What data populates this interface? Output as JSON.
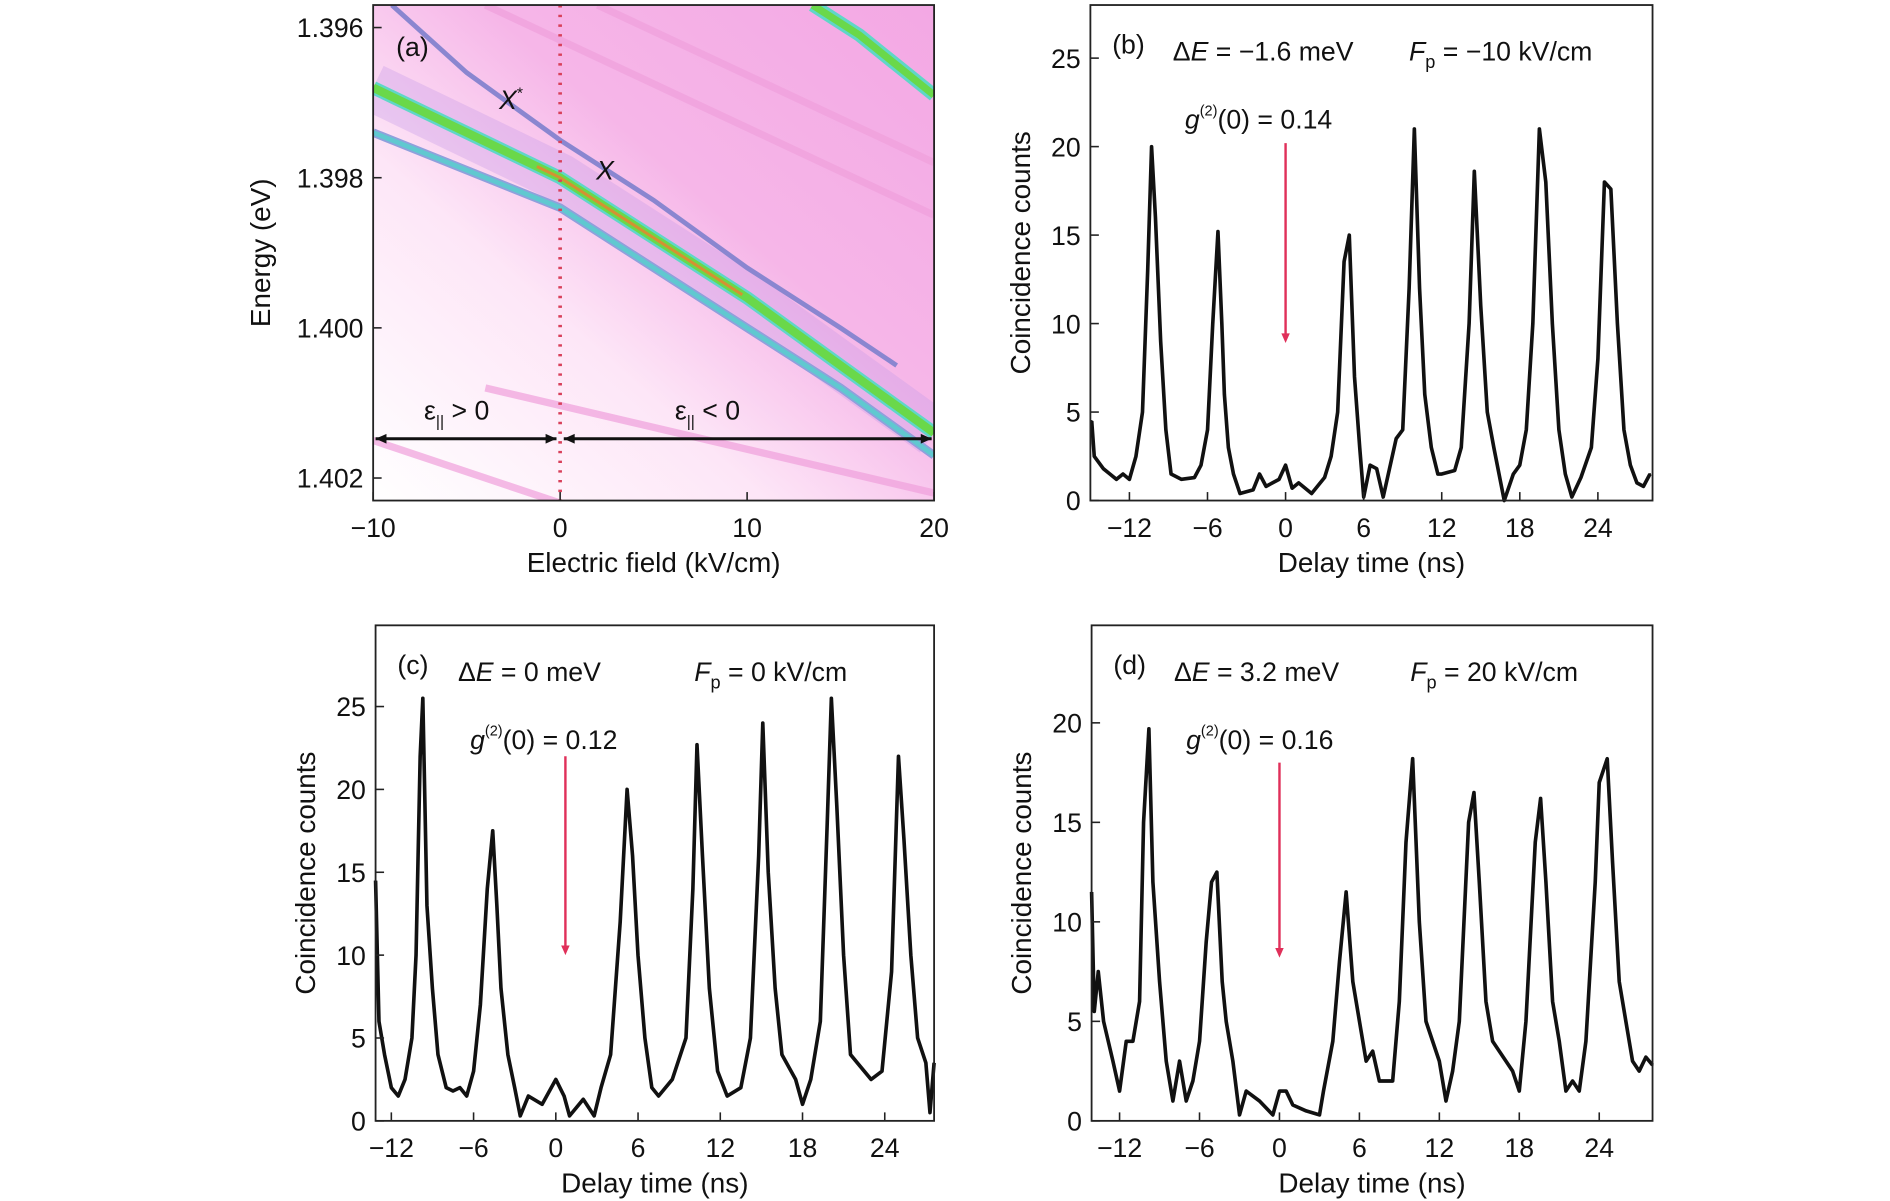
{
  "chart_data": [
    {
      "panel": "(a)",
      "type": "heatmap",
      "xlabel": "Electric field (kV/cm)",
      "ylabel": "Energy (eV)",
      "xlim": [
        -10,
        20
      ],
      "ylim": [
        1.4023,
        1.3957
      ],
      "y_inverted": true,
      "xticks": [
        -10,
        0,
        10,
        20
      ],
      "xtick_labels": [
        "−10",
        "0",
        "10",
        "20"
      ],
      "yticks": [
        1.396,
        1.398,
        1.4,
        1.402
      ],
      "ytick_labels": [
        "1.396",
        "1.398",
        "1.400",
        "1.402"
      ],
      "colormap": [
        "#ffffff",
        "#f4b8e6",
        "#9a8fd8",
        "#5fd6c8",
        "#7ee04a",
        "#d8e030",
        "#e07030"
      ],
      "lines": [
        {
          "label": "X",
          "points": [
            [
              -10,
              1.3968
            ],
            [
              -5,
              1.3974
            ],
            [
              0,
              1.398
            ],
            [
              5,
              1.3988
            ],
            [
              10,
              1.3996
            ],
            [
              15,
              1.4005
            ],
            [
              20,
              1.4014
            ]
          ],
          "color": "#6ad84a"
        },
        {
          "points": [
            [
              -10,
              1.3974
            ],
            [
              -5,
              1.3979
            ],
            [
              0,
              1.3984
            ],
            [
              5,
              1.3992
            ],
            [
              10,
              1.4
            ],
            [
              15,
              1.4008
            ],
            [
              20,
              1.4017
            ]
          ],
          "color": "#60c8d0"
        },
        {
          "label": "X*",
          "points": [
            [
              -9,
              1.3957
            ],
            [
              -5,
              1.3966
            ],
            [
              0,
              1.3975
            ],
            [
              5,
              1.3983
            ],
            [
              10,
              1.3992
            ],
            [
              15,
              1.4
            ],
            [
              18,
              1.4005
            ]
          ],
          "color": "#8a86d0"
        },
        {
          "points": [
            [
              13.5,
              1.3957
            ],
            [
              16,
              1.3961
            ],
            [
              18,
              1.3965
            ],
            [
              20,
              1.3969
            ]
          ],
          "color": "#6ad84a"
        }
      ],
      "marker_line_x": 0,
      "annotations": {
        "panel_label": "(a)",
        "x_star": "X",
        "x_star_sup": "*",
        "x": "X",
        "strain_pos": "ε",
        "strain_pos_sub": "||",
        "strain_pos_rel": " > 0",
        "strain_neg": "ε",
        "strain_neg_sub": "||",
        "strain_neg_rel": " < 0"
      }
    },
    {
      "panel": "(b)",
      "type": "line",
      "xlabel": "Delay time (ns)",
      "ylabel": "Coincidence counts",
      "xlim": [
        -15,
        28.2
      ],
      "ylim": [
        0,
        28
      ],
      "xticks": [
        -12,
        -6,
        0,
        6,
        12,
        18,
        24
      ],
      "xtick_labels": [
        "−12",
        "−6",
        "0",
        "6",
        "12",
        "18",
        "24"
      ],
      "yticks": [
        0,
        5,
        10,
        15,
        20,
        25
      ],
      "ytick_labels": [
        "0",
        "5",
        "10",
        "15",
        "20",
        "25"
      ],
      "annotations": {
        "panel_label": "(b)",
        "delta_e": "ΔE = −1.6 meV",
        "delta_e_sym": "Δ",
        "delta_e_var": "E",
        "delta_e_val": " = −1.6 meV",
        "fp_var": "F",
        "fp_sub": "p",
        "fp_val": " = −10 kV/cm",
        "g2_var": "g",
        "g2_sup": "(2)",
        "g2_val": "(0) = 0.14"
      },
      "arrow": {
        "x": 0,
        "from": 20.2,
        "to": 8.9,
        "color": "#e0305a"
      },
      "points": [
        [
          -14.9,
          4.5
        ],
        [
          -14.7,
          2.5
        ],
        [
          -14,
          1.8
        ],
        [
          -13.5,
          1.5
        ],
        [
          -13,
          1.2
        ],
        [
          -12.5,
          1.5
        ],
        [
          -12,
          1.2
        ],
        [
          -11.5,
          2.5
        ],
        [
          -11,
          5
        ],
        [
          -10.6,
          13
        ],
        [
          -10.3,
          20
        ],
        [
          -10,
          16
        ],
        [
          -9.6,
          9
        ],
        [
          -9.2,
          4
        ],
        [
          -8.8,
          1.5
        ],
        [
          -8,
          1.2
        ],
        [
          -7,
          1.3
        ],
        [
          -6.5,
          2
        ],
        [
          -6,
          4
        ],
        [
          -5.6,
          10
        ],
        [
          -5.2,
          15.2
        ],
        [
          -4.9,
          10
        ],
        [
          -4.7,
          6
        ],
        [
          -4.4,
          3
        ],
        [
          -4,
          1.5
        ],
        [
          -3.5,
          0.4
        ],
        [
          -2.5,
          0.6
        ],
        [
          -2,
          1.5
        ],
        [
          -1.5,
          0.8
        ],
        [
          -0.5,
          1.2
        ],
        [
          0,
          2
        ],
        [
          0.5,
          0.7
        ],
        [
          1,
          1
        ],
        [
          2,
          0.4
        ],
        [
          3,
          1.3
        ],
        [
          3.5,
          2.5
        ],
        [
          4,
          5
        ],
        [
          4.5,
          13.5
        ],
        [
          4.9,
          15
        ],
        [
          5.3,
          7
        ],
        [
          5.7,
          3
        ],
        [
          6,
          0.2
        ],
        [
          6.5,
          2
        ],
        [
          7,
          1.8
        ],
        [
          7.5,
          0.2
        ],
        [
          8.5,
          3.5
        ],
        [
          9,
          4
        ],
        [
          9.5,
          12
        ],
        [
          9.9,
          21
        ],
        [
          10.3,
          12
        ],
        [
          10.7,
          6
        ],
        [
          11.2,
          3
        ],
        [
          11.7,
          1.5
        ],
        [
          12,
          1.5
        ],
        [
          13,
          1.7
        ],
        [
          13.5,
          3
        ],
        [
          14.1,
          10
        ],
        [
          14.5,
          18.6
        ],
        [
          15,
          11
        ],
        [
          15.5,
          5
        ],
        [
          16,
          3
        ],
        [
          16.8,
          0
        ],
        [
          17.5,
          1.5
        ],
        [
          18,
          2
        ],
        [
          18.5,
          4
        ],
        [
          19,
          10
        ],
        [
          19.5,
          21
        ],
        [
          20,
          18
        ],
        [
          20.5,
          10
        ],
        [
          21,
          4
        ],
        [
          21.5,
          1.5
        ],
        [
          22,
          0.2
        ],
        [
          22.7,
          1.3
        ],
        [
          23.5,
          3
        ],
        [
          24,
          8
        ],
        [
          24.5,
          18
        ],
        [
          25,
          17.6
        ],
        [
          25.5,
          10
        ],
        [
          26,
          4
        ],
        [
          26.5,
          2
        ],
        [
          27,
          1
        ],
        [
          27.5,
          0.8
        ],
        [
          28,
          1.5
        ]
      ]
    },
    {
      "panel": "(c)",
      "type": "line",
      "xlabel": "Delay time (ns)",
      "ylabel": "Coincidence counts",
      "xlim": [
        -13.15,
        27.6
      ],
      "ylim": [
        0,
        29.9
      ],
      "xticks": [
        -12,
        -6,
        0,
        6,
        12,
        18,
        24
      ],
      "xtick_labels": [
        "−12",
        "−6",
        "0",
        "6",
        "12",
        "18",
        "24"
      ],
      "yticks": [
        0,
        5,
        10,
        15,
        20,
        25
      ],
      "ytick_labels": [
        "0",
        "5",
        "10",
        "15",
        "20",
        "25"
      ],
      "annotations": {
        "panel_label": "(c)",
        "delta_e_sym": "Δ",
        "delta_e_var": "E",
        "delta_e_val": " = 0 meV",
        "fp_var": "F",
        "fp_sub": "p",
        "fp_val": " = 0 kV/cm",
        "g2_var": "g",
        "g2_sup": "(2)",
        "g2_val": "(0) = 0.12"
      },
      "arrow": {
        "x": 0.7,
        "from": 22,
        "to": 10,
        "color": "#e0305a"
      },
      "points": [
        [
          -13.15,
          14.5
        ],
        [
          -12.9,
          6
        ],
        [
          -12.5,
          4
        ],
        [
          -12,
          2
        ],
        [
          -11.5,
          1.5
        ],
        [
          -11,
          2.5
        ],
        [
          -10.5,
          5
        ],
        [
          -10.2,
          10
        ],
        [
          -9.9,
          22
        ],
        [
          -9.7,
          25.5
        ],
        [
          -9.4,
          13
        ],
        [
          -9,
          8
        ],
        [
          -8.6,
          4
        ],
        [
          -8,
          2
        ],
        [
          -7.5,
          1.8
        ],
        [
          -7,
          2
        ],
        [
          -6.5,
          1.5
        ],
        [
          -6,
          3
        ],
        [
          -5.5,
          7
        ],
        [
          -5,
          14
        ],
        [
          -4.6,
          17.5
        ],
        [
          -4.3,
          13
        ],
        [
          -4,
          8
        ],
        [
          -3.5,
          4
        ],
        [
          -3,
          2
        ],
        [
          -2.6,
          0.3
        ],
        [
          -2,
          1.5
        ],
        [
          -1,
          1
        ],
        [
          0,
          2.5
        ],
        [
          0.6,
          1.5
        ],
        [
          1,
          0.3
        ],
        [
          2,
          1.3
        ],
        [
          2.8,
          0.3
        ],
        [
          3.3,
          2
        ],
        [
          4,
          4
        ],
        [
          4.7,
          12
        ],
        [
          5.2,
          20
        ],
        [
          5.6,
          16
        ],
        [
          6,
          10
        ],
        [
          6.5,
          5
        ],
        [
          7,
          2
        ],
        [
          7.5,
          1.5
        ],
        [
          8.5,
          2.5
        ],
        [
          9.5,
          5
        ],
        [
          10,
          14
        ],
        [
          10.3,
          22.7
        ],
        [
          10.7,
          16
        ],
        [
          11.2,
          8
        ],
        [
          11.8,
          3
        ],
        [
          12.5,
          1.5
        ],
        [
          13.5,
          2
        ],
        [
          14.2,
          5
        ],
        [
          14.8,
          16
        ],
        [
          15.1,
          24
        ],
        [
          15.5,
          15
        ],
        [
          16,
          8
        ],
        [
          16.5,
          4
        ],
        [
          17.5,
          2.5
        ],
        [
          18,
          1
        ],
        [
          18.6,
          2.5
        ],
        [
          19.3,
          6
        ],
        [
          19.8,
          18
        ],
        [
          20.1,
          25.5
        ],
        [
          20.5,
          19
        ],
        [
          21,
          10
        ],
        [
          21.5,
          4
        ],
        [
          22,
          3.5
        ],
        [
          23,
          2.5
        ],
        [
          23.8,
          3
        ],
        [
          24.5,
          9
        ],
        [
          25,
          22
        ],
        [
          25.4,
          17
        ],
        [
          25.9,
          10
        ],
        [
          26.4,
          5
        ],
        [
          27,
          3.5
        ],
        [
          27.3,
          0.5
        ],
        [
          27.6,
          3.5
        ]
      ]
    },
    {
      "panel": "(d)",
      "type": "line",
      "xlabel": "Delay time (ns)",
      "ylabel": "Coincidence counts",
      "xlim": [
        -14.1,
        28
      ],
      "ylim": [
        0,
        24.9
      ],
      "xticks": [
        -12,
        -6,
        0,
        6,
        12,
        18,
        24
      ],
      "xtick_labels": [
        "−12",
        "−6",
        "0",
        "6",
        "12",
        "18",
        "24"
      ],
      "yticks": [
        0,
        5,
        10,
        15,
        20
      ],
      "ytick_labels": [
        "0",
        "5",
        "10",
        "15",
        "20"
      ],
      "annotations": {
        "panel_label": "(d)",
        "delta_e_sym": "Δ",
        "delta_e_var": "E",
        "delta_e_val": " = 3.2 meV",
        "fp_var": "F",
        "fp_sub": "p",
        "fp_val": " = 20 kV/cm",
        "g2_var": "g",
        "g2_sup": "(2)",
        "g2_val": "(0) = 0.16"
      },
      "arrow": {
        "x": 0,
        "from": 18,
        "to": 8.2,
        "color": "#e0305a"
      },
      "points": [
        [
          -14.1,
          11.5
        ],
        [
          -13.9,
          5.5
        ],
        [
          -13.6,
          7.5
        ],
        [
          -13.2,
          5
        ],
        [
          -12.5,
          3
        ],
        [
          -12,
          1.5
        ],
        [
          -11.5,
          4
        ],
        [
          -11,
          4
        ],
        [
          -10.5,
          6
        ],
        [
          -10.2,
          15
        ],
        [
          -9.8,
          19.7
        ],
        [
          -9.5,
          12
        ],
        [
          -9,
          7
        ],
        [
          -8.5,
          3
        ],
        [
          -8,
          1
        ],
        [
          -7.5,
          3
        ],
        [
          -7,
          1
        ],
        [
          -6.5,
          2
        ],
        [
          -6,
          4
        ],
        [
          -5.5,
          9
        ],
        [
          -5.1,
          12
        ],
        [
          -4.7,
          12.5
        ],
        [
          -4.3,
          7
        ],
        [
          -4,
          5
        ],
        [
          -3.5,
          3
        ],
        [
          -3,
          0.3
        ],
        [
          -2.5,
          1.5
        ],
        [
          -1.5,
          1
        ],
        [
          -0.5,
          0.3
        ],
        [
          0,
          1.5
        ],
        [
          0.5,
          1.5
        ],
        [
          1,
          0.8
        ],
        [
          2,
          0.5
        ],
        [
          3,
          0.3
        ],
        [
          3.3,
          1.5
        ],
        [
          4,
          4
        ],
        [
          4.5,
          8
        ],
        [
          5,
          11.5
        ],
        [
          5.5,
          7
        ],
        [
          6,
          5
        ],
        [
          6.5,
          3
        ],
        [
          7,
          3.5
        ],
        [
          7.5,
          2
        ],
        [
          8.5,
          2
        ],
        [
          9,
          6
        ],
        [
          9.5,
          14
        ],
        [
          10,
          18.2
        ],
        [
          10.5,
          10
        ],
        [
          11,
          5
        ],
        [
          11.5,
          4
        ],
        [
          12,
          3
        ],
        [
          12.5,
          1
        ],
        [
          13,
          2.5
        ],
        [
          13.5,
          5
        ],
        [
          14.2,
          15
        ],
        [
          14.6,
          16.5
        ],
        [
          15,
          12
        ],
        [
          15.5,
          6
        ],
        [
          16,
          4
        ],
        [
          17,
          3
        ],
        [
          17.5,
          2.5
        ],
        [
          18,
          1.5
        ],
        [
          18.5,
          5
        ],
        [
          19.2,
          14
        ],
        [
          19.6,
          16.2
        ],
        [
          20,
          12
        ],
        [
          20.5,
          6
        ],
        [
          21,
          4
        ],
        [
          21.5,
          1.5
        ],
        [
          22,
          2
        ],
        [
          22.5,
          1.5
        ],
        [
          23,
          4
        ],
        [
          23.7,
          12
        ],
        [
          24,
          17
        ],
        [
          24.6,
          18.2
        ],
        [
          25,
          13
        ],
        [
          25.5,
          7
        ],
        [
          26,
          5
        ],
        [
          26.5,
          3
        ],
        [
          27,
          2.5
        ],
        [
          27.5,
          3.2
        ],
        [
          28,
          2.8
        ]
      ]
    }
  ]
}
